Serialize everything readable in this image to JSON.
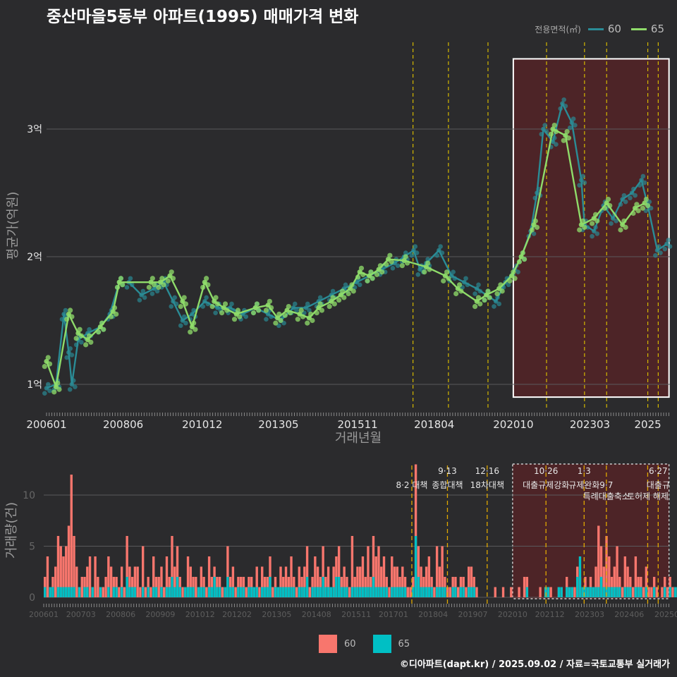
{
  "title": "중산마을5동부 아파트(1995) 매매가격 변화",
  "credit": "©디아파트(dapt.kr) / 2025.09.02 / 자료=국토교통부 실거래가",
  "legend": {
    "title": "전용면적(㎡)",
    "items": [
      {
        "label": "60",
        "color": "#2a8c96"
      },
      {
        "label": "65",
        "color": "#8fdc6a"
      }
    ]
  },
  "colors": {
    "c60_bar": "#f8766d",
    "c65_bar": "#00bfc4",
    "line60": "#2a8c96",
    "line65": "#8fdc6a",
    "policy": "#d4b800",
    "highlight": "#5a2325"
  },
  "chart_data": [
    {
      "type": "line",
      "title": "중산마을5동부 아파트(1995) 매매가격 변화",
      "xlabel": "거래년월",
      "ylabel": "평균가(억원)",
      "x_ticks": [
        "200601",
        "200806",
        "201012",
        "201305",
        "201511",
        "201804",
        "202010",
        "202303",
        "2025"
      ],
      "y_ticks": [
        {
          "value": 1,
          "label": "1억"
        },
        {
          "value": 2,
          "label": "2억"
        },
        {
          "value": 3,
          "label": "3억"
        }
      ],
      "ylim": [
        0.8,
        3.6
      ],
      "xlim": [
        2006.0,
        2025.7
      ],
      "highlight_box": [
        2020.75,
        2025.67
      ],
      "policy_lines": [
        2017.58,
        2018.7,
        2019.95,
        2021.8,
        2023.0,
        2023.7,
        2025.0,
        2025.33
      ],
      "series": [
        {
          "name": "60",
          "x": [
            2006.0,
            2006.3,
            2006.55,
            2006.7,
            2006.8,
            2007.0,
            2007.3,
            2007.7,
            2008.0,
            2008.3,
            2008.6,
            2009.0,
            2009.4,
            2009.7,
            2010.0,
            2010.3,
            2010.6,
            2011.0,
            2011.4,
            2011.8,
            2012.2,
            2012.6,
            2013.0,
            2013.4,
            2013.8,
            2014.2,
            2014.6,
            2015.0,
            2015.4,
            2015.8,
            2016.2,
            2016.6,
            2017.0,
            2017.3,
            2017.6,
            2017.8,
            2018.0,
            2018.4,
            2018.8,
            2019.2,
            2019.6,
            2019.9,
            2020.2,
            2020.5,
            2020.8,
            2021.0,
            2021.3,
            2021.5,
            2021.7,
            2022.0,
            2022.3,
            2022.6,
            2022.9,
            2023.0,
            2023.3,
            2023.6,
            2023.9,
            2024.2,
            2024.5,
            2024.8,
            2025.0,
            2025.3,
            2025.6
          ],
          "values": [
            0.97,
            1.0,
            1.55,
            1.25,
            1.0,
            1.35,
            1.4,
            1.45,
            1.55,
            1.8,
            1.8,
            1.7,
            1.75,
            1.8,
            1.65,
            1.5,
            1.55,
            1.65,
            1.6,
            1.6,
            1.55,
            1.6,
            1.55,
            1.5,
            1.6,
            1.6,
            1.65,
            1.7,
            1.75,
            1.8,
            1.85,
            1.9,
            1.95,
            2.0,
            2.05,
            1.9,
            1.95,
            2.05,
            1.85,
            1.8,
            1.75,
            1.7,
            1.65,
            1.8,
            1.9,
            2.0,
            2.2,
            2.5,
            3.0,
            2.9,
            3.2,
            3.05,
            2.6,
            2.25,
            2.2,
            2.4,
            2.3,
            2.45,
            2.5,
            2.6,
            2.4,
            2.05,
            2.1
          ]
        },
        {
          "name": "65",
          "x": [
            2006.0,
            2006.3,
            2006.7,
            2007.0,
            2007.3,
            2007.7,
            2008.1,
            2008.3,
            2009.3,
            2009.6,
            2009.9,
            2010.3,
            2010.6,
            2011.0,
            2011.3,
            2011.6,
            2012.0,
            2012.6,
            2013.0,
            2013.3,
            2013.6,
            2014.0,
            2014.3,
            2014.6,
            2015.0,
            2015.3,
            2015.6,
            2015.9,
            2016.2,
            2016.5,
            2016.8,
            2017.3,
            2018.0,
            2018.6,
            2019.0,
            2019.6,
            2019.9,
            2020.3,
            2020.7,
            2021.0,
            2021.4,
            2022.0,
            2022.4,
            2022.9,
            2023.3,
            2023.7,
            2024.2,
            2024.6,
            2024.9
          ],
          "values": [
            1.18,
            0.98,
            1.55,
            1.4,
            1.35,
            1.45,
            1.57,
            1.8,
            1.8,
            1.8,
            1.85,
            1.65,
            1.45,
            1.8,
            1.65,
            1.6,
            1.55,
            1.6,
            1.62,
            1.52,
            1.58,
            1.55,
            1.52,
            1.6,
            1.65,
            1.7,
            1.75,
            1.88,
            1.85,
            1.9,
            1.98,
            1.97,
            1.92,
            1.85,
            1.75,
            1.65,
            1.7,
            1.75,
            1.85,
            2.0,
            2.25,
            3.0,
            2.95,
            2.25,
            2.3,
            2.42,
            2.25,
            2.38,
            2.42
          ]
        }
      ]
    },
    {
      "type": "bar",
      "ylabel": "거래량(건)",
      "ylim": [
        0,
        13
      ],
      "y_ticks": [
        0,
        5,
        10
      ],
      "x_ticks": [
        "200601",
        "200703",
        "200806",
        "200909",
        "201012",
        "201202",
        "201305",
        "201408",
        "201511",
        "201701",
        "201804",
        "201907",
        "202010",
        "202112",
        "202303",
        "202406",
        "20250"
      ],
      "annotations": [
        {
          "x": 2017.58,
          "label": "8·2 대책",
          "row": 1
        },
        {
          "x": 2018.7,
          "label": "9·13",
          "row": 0
        },
        {
          "x": 2018.7,
          "label": "종합대책",
          "row": 1
        },
        {
          "x": 2019.95,
          "label": "12·16",
          "row": 0
        },
        {
          "x": 2019.95,
          "label": "18차대책",
          "row": 1
        },
        {
          "x": 2021.8,
          "label": "10·26",
          "row": 0
        },
        {
          "x": 2021.8,
          "label": "대출규제강화",
          "row": 1
        },
        {
          "x": 2023.0,
          "label": "1·3",
          "row": 0
        },
        {
          "x": 2023.0,
          "label": "규제완화",
          "row": 1
        },
        {
          "x": 2023.7,
          "label": "9·7",
          "row": 1
        },
        {
          "x": 2023.7,
          "label": "특례대출축소",
          "row": 2
        },
        {
          "x": 2025.0,
          "label": "토허제 해제",
          "row": 2
        },
        {
          "x": 2025.33,
          "label": "6·27",
          "row": 0
        },
        {
          "x": 2025.33,
          "label": "대출규",
          "row": 1
        }
      ],
      "series": [
        {
          "name": "60",
          "x_start": 2006.0,
          "step_months": 1,
          "values": [
            2,
            4,
            1,
            2,
            3,
            6,
            5,
            4,
            5,
            7,
            12,
            6,
            3,
            1,
            2,
            2,
            3,
            4,
            1,
            4,
            2,
            1,
            1,
            2,
            4,
            3,
            2,
            2,
            1,
            3,
            1,
            6,
            3,
            2,
            3,
            3,
            1,
            5,
            1,
            2,
            1,
            4,
            2,
            2,
            3,
            1,
            4,
            2,
            6,
            3,
            5,
            2,
            1,
            1,
            4,
            3,
            2,
            2,
            1,
            3,
            2,
            1,
            4,
            2,
            3,
            2,
            2,
            1,
            1,
            5,
            2,
            3,
            1,
            2,
            2,
            2,
            1,
            2,
            2,
            1,
            3,
            1,
            3,
            2,
            2,
            4,
            1,
            2,
            1,
            3,
            2,
            3,
            2,
            4,
            2,
            1,
            3,
            2,
            3,
            5,
            1,
            2,
            4,
            3,
            2,
            5,
            2,
            3,
            1,
            3,
            4,
            5,
            2,
            3,
            2,
            1,
            6,
            2,
            3,
            3,
            4,
            2,
            5,
            2,
            6,
            4,
            5,
            3,
            4,
            2,
            1,
            4,
            3,
            3,
            2,
            3,
            2,
            1,
            1,
            2,
            13,
            5,
            3,
            2,
            3,
            4,
            2,
            1,
            5,
            3,
            5,
            2,
            1,
            1,
            2,
            2,
            1,
            2,
            2,
            1,
            3,
            3,
            2,
            1,
            0,
            0,
            0,
            0,
            0,
            0,
            1,
            0,
            0,
            1,
            0,
            0,
            1,
            0,
            0,
            1,
            0,
            2,
            2,
            0,
            0,
            0,
            0,
            1,
            0,
            1,
            1,
            1,
            0,
            0,
            1,
            1,
            0,
            2,
            1,
            1,
            1,
            3,
            2,
            1,
            2,
            1,
            2,
            1,
            3,
            7,
            5,
            3,
            6,
            4,
            2,
            3,
            5,
            2,
            1,
            4,
            3,
            2,
            1,
            4,
            2,
            2,
            1,
            3,
            1,
            1,
            2,
            1,
            0,
            1,
            2,
            1,
            2,
            1,
            1,
            1,
            0,
            1,
            1,
            1,
            0,
            1,
            0,
            0,
            1,
            0,
            1,
            1,
            0,
            0,
            1,
            1,
            0,
            0,
            1,
            1,
            0,
            2,
            1,
            1,
            0,
            1,
            1,
            2,
            1,
            1,
            0,
            1,
            1
          ]
        },
        {
          "name": "65",
          "x_start": 2006.0,
          "step_months": 1,
          "values": [
            1,
            0,
            1,
            1,
            0,
            1,
            1,
            1,
            1,
            1,
            1,
            1,
            0,
            1,
            0,
            1,
            1,
            0,
            1,
            0,
            0,
            1,
            0,
            0,
            1,
            0,
            1,
            1,
            0,
            1,
            0,
            2,
            1,
            1,
            1,
            0,
            0,
            1,
            0,
            1,
            0,
            1,
            1,
            0,
            1,
            0,
            1,
            1,
            2,
            1,
            2,
            1,
            0,
            1,
            1,
            1,
            1,
            0,
            1,
            1,
            1,
            0,
            1,
            1,
            2,
            1,
            1,
            0,
            1,
            2,
            1,
            1,
            0,
            1,
            1,
            1,
            0,
            1,
            1,
            1,
            1,
            0,
            1,
            1,
            1,
            2,
            0,
            1,
            1,
            1,
            1,
            1,
            1,
            1,
            1,
            0,
            1,
            1,
            1,
            2,
            0,
            1,
            1,
            1,
            1,
            2,
            1,
            1,
            1,
            1,
            2,
            2,
            1,
            1,
            1,
            0,
            1,
            1,
            1,
            1,
            1,
            1,
            1,
            1,
            2,
            1,
            1,
            1,
            1,
            1,
            0,
            1,
            1,
            1,
            1,
            1,
            1,
            0,
            0,
            1,
            6,
            2,
            1,
            1,
            1,
            1,
            1,
            0,
            1,
            1,
            1,
            1,
            0,
            0,
            1,
            1,
            0,
            1,
            1,
            0,
            1,
            1,
            1,
            0,
            0,
            0,
            0,
            0,
            0,
            0,
            0,
            0,
            0,
            0,
            0,
            0,
            0,
            0,
            0,
            0,
            0,
            0,
            1,
            0,
            0,
            0,
            0,
            0,
            0,
            1,
            1,
            0,
            0,
            0,
            1,
            1,
            0,
            1,
            1,
            1,
            0,
            2,
            4,
            1,
            1,
            1,
            1,
            1,
            1,
            1,
            2,
            1,
            1,
            1,
            1,
            1,
            1,
            1,
            0,
            1,
            1,
            1,
            0,
            1,
            1,
            1,
            0,
            1,
            0,
            0,
            1,
            0,
            0,
            0,
            1,
            0,
            1,
            0,
            1,
            1,
            0,
            0,
            1,
            1,
            0,
            0,
            0,
            0,
            1,
            0,
            0,
            0,
            0,
            0,
            0,
            0,
            0,
            0,
            0,
            0,
            0,
            0,
            0,
            1,
            0,
            0,
            0,
            0
          ]
        }
      ]
    }
  ]
}
